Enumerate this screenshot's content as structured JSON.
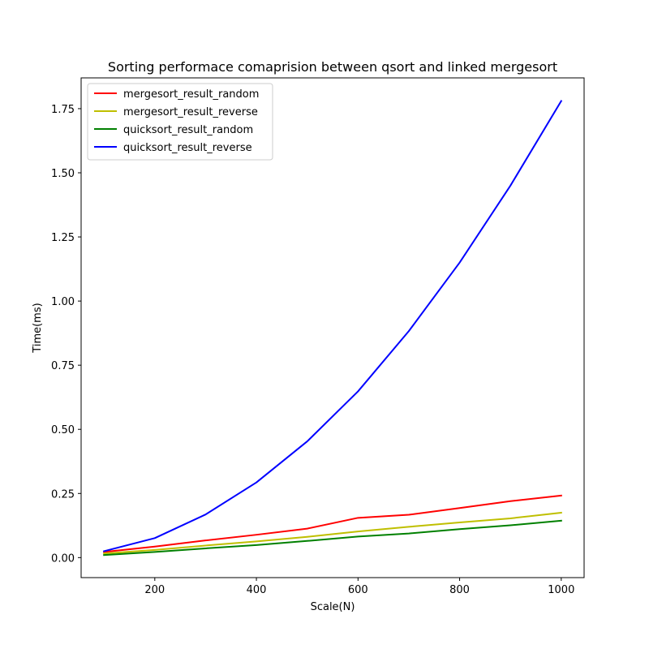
{
  "chart_data": {
    "type": "line",
    "title": "Sorting performace comaprision between qsort and linked mergesort",
    "xlabel": "Scale(N)",
    "ylabel": "Time(ms)",
    "x": [
      100,
      200,
      300,
      400,
      500,
      600,
      700,
      800,
      900,
      1000
    ],
    "xlim": [
      55,
      1045
    ],
    "ylim": [
      -0.078,
      1.87
    ],
    "xticks": [
      200,
      400,
      600,
      800,
      1000
    ],
    "yticks": [
      0.0,
      0.25,
      0.5,
      0.75,
      1.0,
      1.25,
      1.5,
      1.75
    ],
    "xtick_labels": [
      "200",
      "400",
      "600",
      "800",
      "1000"
    ],
    "ytick_labels": [
      "0.00",
      "0.25",
      "0.50",
      "0.75",
      "1.00",
      "1.25",
      "1.50",
      "1.75"
    ],
    "grid": false,
    "legend_position": "top-left",
    "series": [
      {
        "name": "mergesort_result_random",
        "color": "#ff0000",
        "values": [
          0.022,
          0.043,
          0.067,
          0.089,
          0.113,
          0.155,
          0.167,
          0.193,
          0.22,
          0.242
        ]
      },
      {
        "name": "mergesort_result_reverse",
        "color": "#bfbf00",
        "values": [
          0.016,
          0.03,
          0.047,
          0.063,
          0.081,
          0.102,
          0.12,
          0.137,
          0.153,
          0.175
        ]
      },
      {
        "name": "quicksort_result_random",
        "color": "#008000",
        "values": [
          0.01,
          0.022,
          0.036,
          0.049,
          0.065,
          0.082,
          0.094,
          0.111,
          0.126,
          0.144
        ]
      },
      {
        "name": "quicksort_result_reverse",
        "color": "#0000ff",
        "values": [
          0.025,
          0.076,
          0.168,
          0.293,
          0.453,
          0.648,
          0.883,
          1.15,
          1.45,
          1.78
        ]
      }
    ]
  }
}
